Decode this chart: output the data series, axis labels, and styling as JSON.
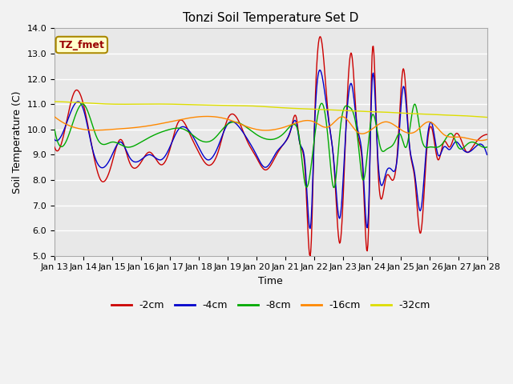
{
  "title": "Tonzi Soil Temperature Set D",
  "xlabel": "Time",
  "ylabel": "Soil Temperature (C)",
  "ylim": [
    5.0,
    14.0
  ],
  "yticks": [
    5.0,
    6.0,
    7.0,
    8.0,
    9.0,
    10.0,
    11.0,
    12.0,
    13.0,
    14.0
  ],
  "xtick_labels": [
    "Jan 13",
    "Jan 14",
    "Jan 15",
    "Jan 16",
    "Jan 17",
    "Jan 18",
    "Jan 19",
    "Jan 20",
    "Jan 21",
    "Jan 22",
    "Jan 23",
    "Jan 24",
    "Jan 25",
    "Jan 26",
    "Jan 27",
    "Jan 28"
  ],
  "legend_entries": [
    "-2cm",
    "-4cm",
    "-8cm",
    "-16cm",
    "-32cm"
  ],
  "line_colors": [
    "#cc0000",
    "#0000cc",
    "#00aa00",
    "#ff8800",
    "#dddd00"
  ],
  "annotation_text": "TZ_fmet",
  "annotation_color": "#990000",
  "annotation_bg": "#ffffcc",
  "annotation_border": "#aa8800",
  "plot_bg": "#e8e8e8",
  "fig_bg": "#f2f2f2",
  "grid_color": "#ffffff"
}
